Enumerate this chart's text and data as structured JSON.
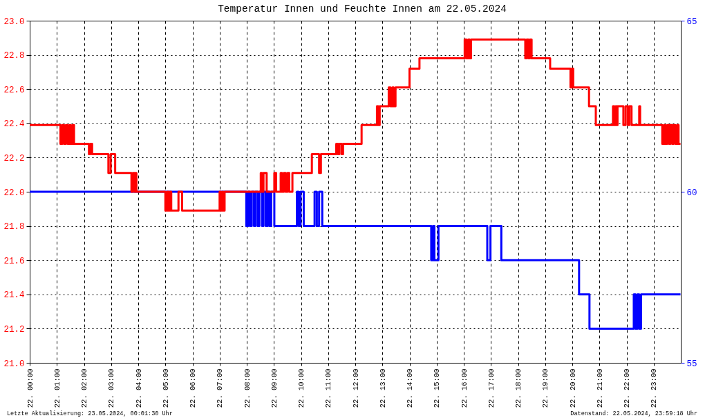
{
  "chart_data": {
    "type": "step",
    "title": "Temperatur Innen und Feuchte Innen am 22.05.2024",
    "xlim": [
      "2024-05-22T00:00",
      "2024-05-23T00:00"
    ],
    "xticks": [
      {
        "value": "2024-05-22T00:00",
        "label": "22. 00:00"
      },
      {
        "value": "2024-05-22T01:00",
        "label": "22. 01:00"
      },
      {
        "value": "2024-05-22T02:00",
        "label": "22. 02:00"
      },
      {
        "value": "2024-05-22T03:00",
        "label": "22. 03:00"
      },
      {
        "value": "2024-05-22T04:00",
        "label": "22. 04:00"
      },
      {
        "value": "2024-05-22T05:00",
        "label": "22. 05:00"
      },
      {
        "value": "2024-05-22T06:00",
        "label": "22. 06:00"
      },
      {
        "value": "2024-05-22T07:00",
        "label": "22. 07:00"
      },
      {
        "value": "2024-05-22T08:00",
        "label": "22. 08:00"
      },
      {
        "value": "2024-05-22T09:00",
        "label": "22. 09:00"
      },
      {
        "value": "2024-05-22T10:00",
        "label": "22. 10:00"
      },
      {
        "value": "2024-05-22T11:00",
        "label": "22. 11:00"
      },
      {
        "value": "2024-05-22T12:00",
        "label": "22. 12:00"
      },
      {
        "value": "2024-05-22T13:00",
        "label": "22. 13:00"
      },
      {
        "value": "2024-05-22T14:00",
        "label": "22. 14:00"
      },
      {
        "value": "2024-05-22T15:00",
        "label": "22. 15:00"
      },
      {
        "value": "2024-05-22T16:00",
        "label": "22. 16:00"
      },
      {
        "value": "2024-05-22T17:00",
        "label": "22. 17:00"
      },
      {
        "value": "2024-05-22T18:00",
        "label": "22. 18:00"
      },
      {
        "value": "2024-05-22T19:00",
        "label": "22. 19:00"
      },
      {
        "value": "2024-05-22T20:00",
        "label": "22. 20:00"
      },
      {
        "value": "2024-05-22T21:00",
        "label": "22. 21:00"
      },
      {
        "value": "2024-05-22T22:00",
        "label": "22. 22:00"
      },
      {
        "value": "2024-05-22T23:00",
        "label": "22. 23:00"
      }
    ],
    "ylim": [
      21,
      23
    ],
    "yticks": [
      {
        "value": 21,
        "label": "21.0"
      },
      21.2,
      21.4,
      21.6,
      21.8,
      {
        "value": 22,
        "label": "22.0"
      },
      22.2,
      22.4,
      22.6,
      22.8,
      {
        "value": 23,
        "label": "23.0"
      }
    ],
    "y2lim": [
      55,
      65
    ],
    "y2ticks": [
      55,
      60,
      65
    ],
    "grid": true,
    "series": [
      {
        "color": "#ff0000",
        "axis": "y",
        "x": [
          "2024-05-22T00:00",
          "2024-05-22T01:08",
          "2024-05-22T01:12",
          "2024-05-22T01:16",
          "2024-05-22T01:20",
          "2024-05-22T01:24",
          "2024-05-22T01:28",
          "2024-05-22T01:31",
          "2024-05-22T01:35",
          "2024-05-22T01:38",
          "2024-05-22T02:11",
          "2024-05-22T02:14",
          "2024-05-22T02:18",
          "2024-05-22T02:54",
          "2024-05-22T02:59",
          "2024-05-22T03:09",
          "2024-05-22T03:45",
          "2024-05-22T03:48",
          "2024-05-22T03:52",
          "2024-05-22T03:54",
          "2024-05-22T03:56",
          "2024-05-22T05:00",
          "2024-05-22T05:04",
          "2024-05-22T05:07",
          "2024-05-22T05:10",
          "2024-05-22T05:13",
          "2024-05-22T05:29",
          "2024-05-22T05:37",
          "2024-05-22T07:00",
          "2024-05-22T07:03",
          "2024-05-22T07:06",
          "2024-05-22T07:08",
          "2024-05-22T07:11",
          "2024-05-22T08:31",
          "2024-05-22T08:34",
          "2024-05-22T08:37",
          "2024-05-22T08:44",
          "2024-05-22T09:01",
          "2024-05-22T09:05",
          "2024-05-22T09:15",
          "2024-05-22T09:18",
          "2024-05-22T09:22",
          "2024-05-22T09:26",
          "2024-05-22T09:30",
          "2024-05-22T09:34",
          "2024-05-22T09:41",
          "2024-05-22T10:24",
          "2024-05-22T10:40",
          "2024-05-22T10:44",
          "2024-05-22T11:18",
          "2024-05-22T11:22",
          "2024-05-22T11:25",
          "2024-05-22T11:30",
          "2024-05-22T11:33",
          "2024-05-22T12:14",
          "2024-05-22T12:48",
          "2024-05-22T12:51",
          "2024-05-22T12:54",
          "2024-05-22T13:14",
          "2024-05-22T13:18",
          "2024-05-22T13:22",
          "2024-05-22T13:25",
          "2024-05-22T13:29",
          "2024-05-22T14:00",
          "2024-05-22T14:22",
          "2024-05-22T16:02",
          "2024-05-22T16:06",
          "2024-05-22T16:10",
          "2024-05-22T16:13",
          "2024-05-22T16:16",
          "2024-05-22T18:16",
          "2024-05-22T18:19",
          "2024-05-22T18:23",
          "2024-05-22T18:26",
          "2024-05-22T18:30",
          "2024-05-22T19:11",
          "2024-05-22T19:56",
          "2024-05-22T19:59",
          "2024-05-22T20:02",
          "2024-05-22T20:37",
          "2024-05-22T20:52",
          "2024-05-22T21:30",
          "2024-05-22T21:33",
          "2024-05-22T21:36",
          "2024-05-22T21:38",
          "2024-05-22T21:40",
          "2024-05-22T21:53",
          "2024-05-22T21:58",
          "2024-05-22T22:03",
          "2024-05-22T22:06",
          "2024-05-22T22:11",
          "2024-05-22T22:28",
          "2024-05-22T22:30",
          "2024-05-22T23:19",
          "2024-05-22T23:23",
          "2024-05-22T23:26",
          "2024-05-22T23:30",
          "2024-05-22T23:34",
          "2024-05-22T23:37",
          "2024-05-22T23:41",
          "2024-05-22T23:44",
          "2024-05-22T23:48",
          "2024-05-22T23:52",
          "2024-05-22T23:55",
          "2024-05-22T23:59:18"
        ],
        "values": [
          22.39,
          22.28,
          22.39,
          22.28,
          22.39,
          22.28,
          22.39,
          22.28,
          22.39,
          22.28,
          22.22,
          22.28,
          22.22,
          22.11,
          22.22,
          22.11,
          22.0,
          22.11,
          22.0,
          22.11,
          22.0,
          21.89,
          22.0,
          21.89,
          22.0,
          21.89,
          22.0,
          21.89,
          22.0,
          21.89,
          22.0,
          21.89,
          22.0,
          22.11,
          22.0,
          22.11,
          22.0,
          22.11,
          22.0,
          22.11,
          22.0,
          22.11,
          22.0,
          22.11,
          22.0,
          22.11,
          22.22,
          22.11,
          22.22,
          22.28,
          22.22,
          22.28,
          22.22,
          22.28,
          22.39,
          22.5,
          22.39,
          22.5,
          22.61,
          22.5,
          22.61,
          22.5,
          22.61,
          22.72,
          22.78,
          22.89,
          22.78,
          22.89,
          22.78,
          22.89,
          22.78,
          22.89,
          22.78,
          22.89,
          22.78,
          22.72,
          22.61,
          22.72,
          22.61,
          22.5,
          22.39,
          22.5,
          22.39,
          22.5,
          22.39,
          22.5,
          22.39,
          22.5,
          22.39,
          22.5,
          22.39,
          22.5,
          22.39,
          22.28,
          22.39,
          22.28,
          22.39,
          22.28,
          22.39,
          22.28,
          22.39,
          22.28,
          22.39,
          22.28,
          22.28
        ]
      },
      {
        "color": "#0000ff",
        "axis": "y2",
        "x": [
          "2024-05-22T00:00",
          "2024-05-22T07:59",
          "2024-05-22T08:03",
          "2024-05-22T08:07",
          "2024-05-22T08:11",
          "2024-05-22T08:16",
          "2024-05-22T08:19",
          "2024-05-22T08:24",
          "2024-05-22T08:28",
          "2024-05-22T08:34",
          "2024-05-22T08:37",
          "2024-05-22T08:42",
          "2024-05-22T08:46",
          "2024-05-22T08:50",
          "2024-05-22T08:54",
          "2024-05-22T09:01",
          "2024-05-22T09:51",
          "2024-05-22T09:55",
          "2024-05-22T09:59",
          "2024-05-22T10:06",
          "2024-05-22T10:30",
          "2024-05-22T10:35",
          "2024-05-22T10:40",
          "2024-05-22T10:47",
          "2024-05-22T14:48",
          "2024-05-22T14:52",
          "2024-05-22T14:55",
          "2024-05-22T15:04",
          "2024-05-22T16:52",
          "2024-05-22T16:59",
          "2024-05-22T17:23",
          "2024-05-22T20:15",
          "2024-05-22T20:38",
          "2024-05-22T22:16",
          "2024-05-22T22:20",
          "2024-05-22T22:24",
          "2024-05-22T22:28",
          "2024-05-22T22:32",
          "2024-05-22T23:59:18"
        ],
        "values": [
          60,
          59,
          60,
          59,
          60,
          59,
          60,
          59,
          60,
          59,
          60,
          59,
          60,
          59,
          60,
          59,
          60,
          59,
          60,
          59,
          60,
          59,
          60,
          59,
          58,
          59,
          58,
          59,
          58,
          59,
          58,
          57,
          56,
          57,
          56,
          57,
          56,
          57,
          57
        ]
      }
    ],
    "annotations": [
      "Letzte Aktualisierung: 23.05.2024, 00:01:30 Uhr",
      "Datenstand: 22.05.2024, 23:59:18 Uhr"
    ]
  }
}
